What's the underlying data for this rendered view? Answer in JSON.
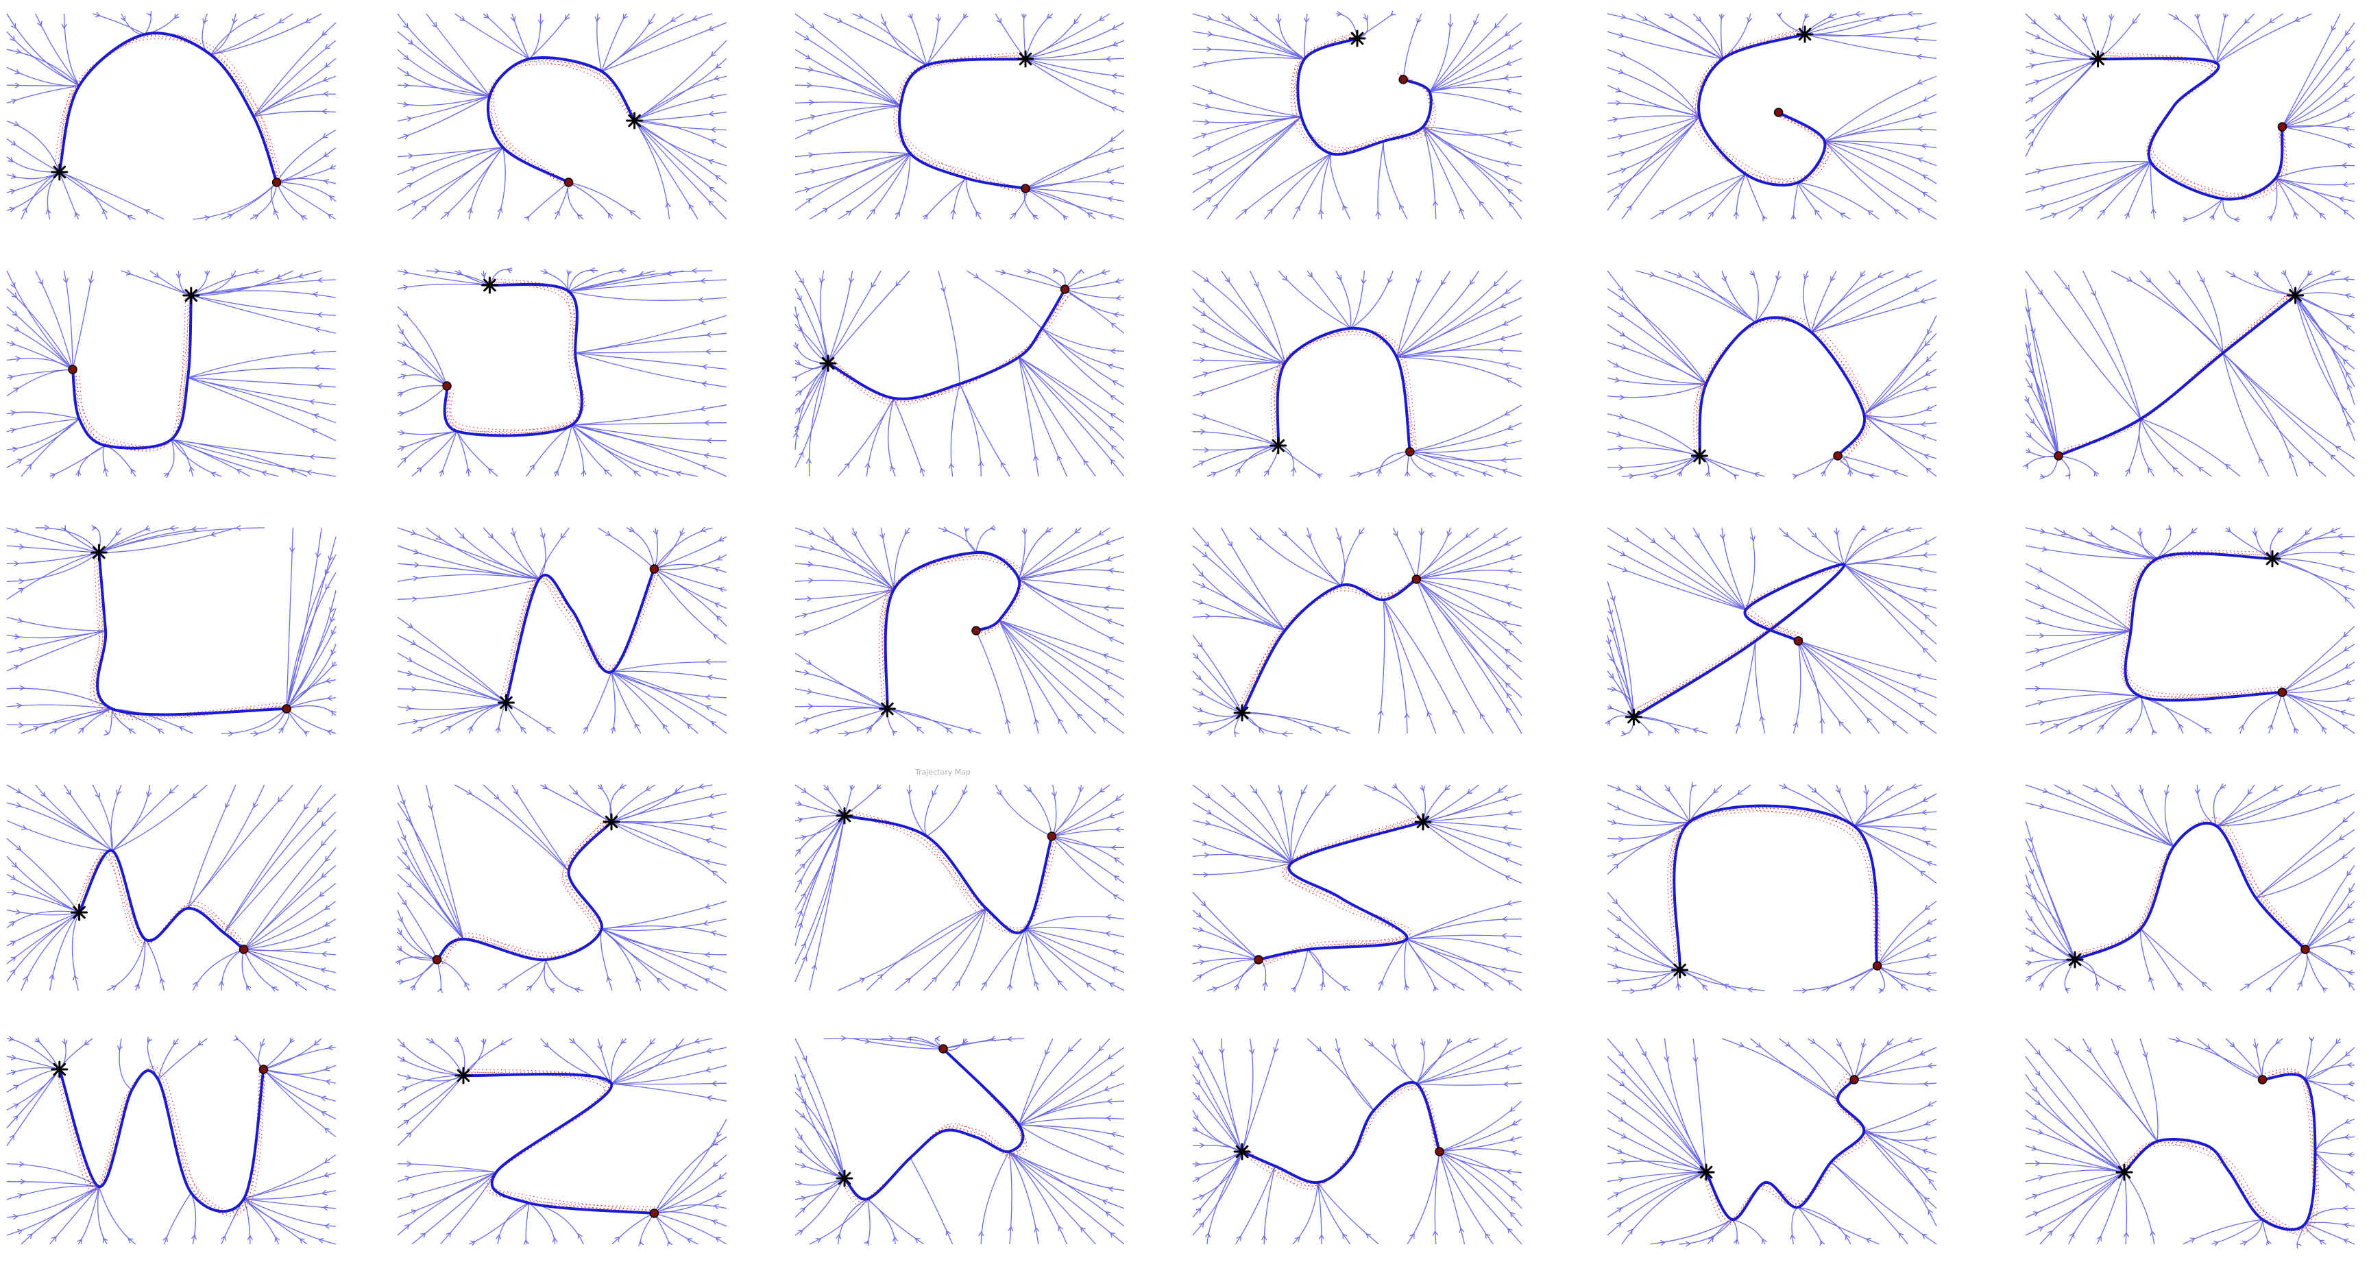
{
  "figure": {
    "colors": {
      "stream": "#5a5ae6",
      "traj": "#1a1ad2",
      "demo": "#d41c1c",
      "marker": "#000000",
      "background": "#ffffff"
    },
    "panel_title_stub": "Trajectory Map",
    "panels": [
      {
        "shape": "A",
        "stroke": [
          [
            0.16,
            0.77
          ],
          [
            0.22,
            0.35
          ],
          [
            0.42,
            0.1
          ],
          [
            0.62,
            0.2
          ],
          [
            0.75,
            0.5
          ],
          [
            0.82,
            0.82
          ]
        ]
      },
      {
        "shape": "C",
        "stroke": [
          [
            0.72,
            0.52
          ],
          [
            0.62,
            0.28
          ],
          [
            0.4,
            0.22
          ],
          [
            0.28,
            0.4
          ],
          [
            0.32,
            0.65
          ],
          [
            0.52,
            0.82
          ]
        ]
      },
      {
        "shape": "C",
        "stroke": [
          [
            0.7,
            0.22
          ],
          [
            0.4,
            0.25
          ],
          [
            0.32,
            0.45
          ],
          [
            0.35,
            0.68
          ],
          [
            0.52,
            0.8
          ],
          [
            0.7,
            0.85
          ]
        ]
      },
      {
        "shape": "e",
        "stroke": [
          [
            0.5,
            0.12
          ],
          [
            0.34,
            0.22
          ],
          [
            0.33,
            0.5
          ],
          [
            0.42,
            0.68
          ],
          [
            0.58,
            0.62
          ],
          [
            0.7,
            0.55
          ],
          [
            0.72,
            0.38
          ],
          [
            0.64,
            0.32
          ]
        ]
      },
      {
        "shape": "G",
        "stroke": [
          [
            0.6,
            0.1
          ],
          [
            0.35,
            0.22
          ],
          [
            0.28,
            0.5
          ],
          [
            0.42,
            0.78
          ],
          [
            0.58,
            0.82
          ],
          [
            0.66,
            0.62
          ],
          [
            0.52,
            0.48
          ]
        ]
      },
      {
        "shape": "S",
        "stroke": [
          [
            0.22,
            0.22
          ],
          [
            0.58,
            0.24
          ],
          [
            0.45,
            0.45
          ],
          [
            0.38,
            0.72
          ],
          [
            0.6,
            0.9
          ],
          [
            0.76,
            0.8
          ],
          [
            0.78,
            0.55
          ]
        ]
      },
      {
        "shape": "J",
        "stroke": [
          [
            0.56,
            0.12
          ],
          [
            0.55,
            0.52
          ],
          [
            0.5,
            0.82
          ],
          [
            0.3,
            0.85
          ],
          [
            0.22,
            0.72
          ],
          [
            0.2,
            0.48
          ]
        ]
      },
      {
        "shape": "B",
        "stroke": [
          [
            0.28,
            0.07
          ],
          [
            0.52,
            0.1
          ],
          [
            0.54,
            0.4
          ],
          [
            0.53,
            0.75
          ],
          [
            0.18,
            0.78
          ],
          [
            0.15,
            0.56
          ]
        ]
      },
      {
        "shape": "sine",
        "stroke": [
          [
            0.1,
            0.45
          ],
          [
            0.3,
            0.62
          ],
          [
            0.5,
            0.55
          ],
          [
            0.68,
            0.42
          ],
          [
            0.75,
            0.28
          ],
          [
            0.82,
            0.09
          ]
        ]
      },
      {
        "shape": "House",
        "stroke": [
          [
            0.26,
            0.85
          ],
          [
            0.28,
            0.45
          ],
          [
            0.48,
            0.28
          ],
          [
            0.62,
            0.42
          ],
          [
            0.66,
            0.88
          ]
        ]
      },
      {
        "shape": "Heart",
        "stroke": [
          [
            0.28,
            0.9
          ],
          [
            0.3,
            0.55
          ],
          [
            0.45,
            0.25
          ],
          [
            0.62,
            0.3
          ],
          [
            0.78,
            0.7
          ],
          [
            0.7,
            0.9
          ]
        ]
      },
      {
        "shape": "Line",
        "stroke": [
          [
            0.82,
            0.12
          ],
          [
            0.6,
            0.4
          ],
          [
            0.35,
            0.72
          ],
          [
            0.1,
            0.9
          ]
        ]
      },
      {
        "shape": "L",
        "stroke": [
          [
            0.28,
            0.12
          ],
          [
            0.3,
            0.5
          ],
          [
            0.32,
            0.88
          ],
          [
            0.85,
            0.88
          ]
        ]
      },
      {
        "shape": "N",
        "stroke": [
          [
            0.33,
            0.85
          ],
          [
            0.43,
            0.25
          ],
          [
            0.53,
            0.4
          ],
          [
            0.65,
            0.7
          ],
          [
            0.78,
            0.2
          ]
        ]
      },
      {
        "shape": "P",
        "stroke": [
          [
            0.28,
            0.88
          ],
          [
            0.3,
            0.3
          ],
          [
            0.55,
            0.12
          ],
          [
            0.68,
            0.25
          ],
          [
            0.62,
            0.45
          ],
          [
            0.55,
            0.5
          ]
        ]
      },
      {
        "shape": "Hump",
        "stroke": [
          [
            0.15,
            0.9
          ],
          [
            0.28,
            0.5
          ],
          [
            0.45,
            0.28
          ],
          [
            0.58,
            0.35
          ],
          [
            0.68,
            0.25
          ]
        ]
      },
      {
        "shape": "Z",
        "stroke": [
          [
            0.08,
            0.92
          ],
          [
            0.45,
            0.55
          ],
          [
            0.72,
            0.18
          ],
          [
            0.42,
            0.4
          ],
          [
            0.58,
            0.55
          ]
        ]
      },
      {
        "shape": "C",
        "stroke": [
          [
            0.75,
            0.15
          ],
          [
            0.4,
            0.15
          ],
          [
            0.32,
            0.5
          ],
          [
            0.35,
            0.82
          ],
          [
            0.78,
            0.8
          ]
        ]
      },
      {
        "shape": "M",
        "stroke": [
          [
            0.22,
            0.62
          ],
          [
            0.32,
            0.32
          ],
          [
            0.42,
            0.75
          ],
          [
            0.55,
            0.6
          ],
          [
            0.66,
            0.72
          ],
          [
            0.72,
            0.8
          ]
        ]
      },
      {
        "shape": "S",
        "stroke": [
          [
            0.65,
            0.18
          ],
          [
            0.52,
            0.42
          ],
          [
            0.62,
            0.7
          ],
          [
            0.45,
            0.85
          ],
          [
            0.2,
            0.75
          ],
          [
            0.12,
            0.85
          ]
        ]
      },
      {
        "shape": "V",
        "stroke": [
          [
            0.15,
            0.15
          ],
          [
            0.4,
            0.25
          ],
          [
            0.58,
            0.6
          ],
          [
            0.7,
            0.7
          ],
          [
            0.78,
            0.25
          ]
        ]
      },
      {
        "shape": "S",
        "stroke": [
          [
            0.7,
            0.18
          ],
          [
            0.3,
            0.38
          ],
          [
            0.45,
            0.55
          ],
          [
            0.65,
            0.75
          ],
          [
            0.35,
            0.8
          ],
          [
            0.2,
            0.85
          ]
        ]
      },
      {
        "shape": "Arch",
        "stroke": [
          [
            0.22,
            0.9
          ],
          [
            0.25,
            0.18
          ],
          [
            0.75,
            0.2
          ],
          [
            0.82,
            0.88
          ]
        ]
      },
      {
        "shape": "Bump",
        "stroke": [
          [
            0.15,
            0.85
          ],
          [
            0.35,
            0.7
          ],
          [
            0.45,
            0.3
          ],
          [
            0.58,
            0.2
          ],
          [
            0.7,
            0.55
          ],
          [
            0.85,
            0.8
          ]
        ]
      },
      {
        "shape": "W",
        "stroke": [
          [
            0.16,
            0.15
          ],
          [
            0.28,
            0.72
          ],
          [
            0.38,
            0.25
          ],
          [
            0.46,
            0.2
          ],
          [
            0.56,
            0.75
          ],
          [
            0.72,
            0.78
          ],
          [
            0.78,
            0.15
          ]
        ]
      },
      {
        "shape": "Z",
        "stroke": [
          [
            0.2,
            0.18
          ],
          [
            0.65,
            0.22
          ],
          [
            0.3,
            0.65
          ],
          [
            0.4,
            0.8
          ],
          [
            0.78,
            0.85
          ]
        ]
      },
      {
        "shape": "Wave",
        "stroke": [
          [
            0.15,
            0.68
          ],
          [
            0.22,
            0.78
          ],
          [
            0.35,
            0.58
          ],
          [
            0.45,
            0.45
          ],
          [
            0.55,
            0.48
          ],
          [
            0.65,
            0.55
          ],
          [
            0.68,
            0.42
          ],
          [
            0.45,
            0.05
          ]
        ]
      },
      {
        "shape": "Wave",
        "stroke": [
          [
            0.15,
            0.55
          ],
          [
            0.25,
            0.62
          ],
          [
            0.38,
            0.7
          ],
          [
            0.48,
            0.58
          ],
          [
            0.55,
            0.35
          ],
          [
            0.68,
            0.22
          ],
          [
            0.75,
            0.55
          ]
        ]
      },
      {
        "shape": "W",
        "stroke": [
          [
            0.3,
            0.65
          ],
          [
            0.38,
            0.88
          ],
          [
            0.48,
            0.7
          ],
          [
            0.58,
            0.82
          ],
          [
            0.68,
            0.6
          ],
          [
            0.78,
            0.45
          ],
          [
            0.7,
            0.3
          ],
          [
            0.75,
            0.2
          ]
        ]
      },
      {
        "shape": "Hook",
        "stroke": [
          [
            0.3,
            0.65
          ],
          [
            0.4,
            0.5
          ],
          [
            0.55,
            0.52
          ],
          [
            0.62,
            0.65
          ],
          [
            0.72,
            0.88
          ],
          [
            0.85,
            0.9
          ],
          [
            0.88,
            0.55
          ],
          [
            0.85,
            0.2
          ],
          [
            0.72,
            0.2
          ]
        ]
      }
    ]
  }
}
